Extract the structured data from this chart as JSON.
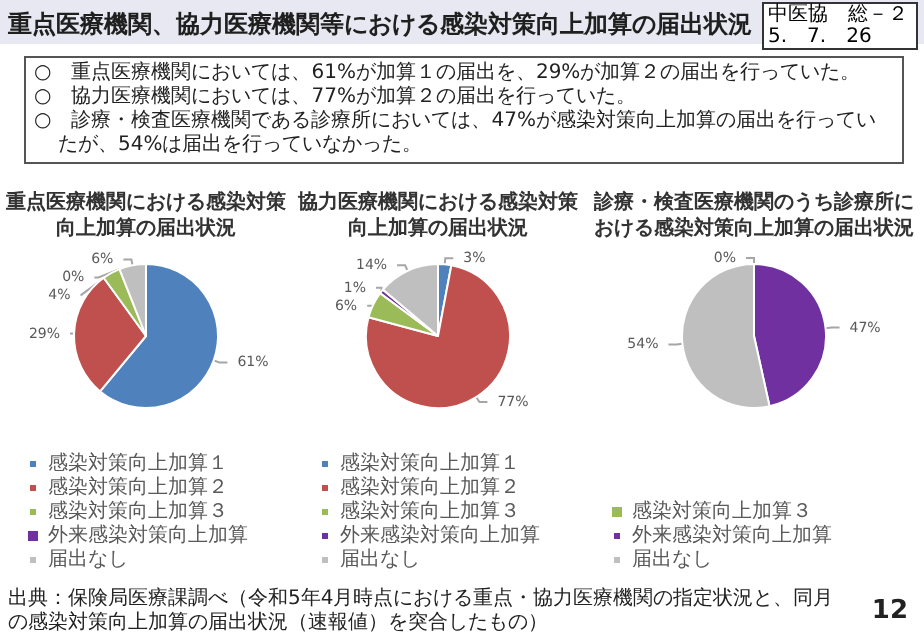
{
  "chart_data": [
    {
      "type": "other",
      "title": "重点医療機関、協力医療機関等における感染対策向上加算の届出状況",
      "annotations": [
        "中医協　総－２",
        "5.　7.　26",
        "○　重点医療機関においては、61%が加算１の届出を、29%が加算２の届出を行っていた。",
        "○　協力医療機関においては、77%が加算２の届出を行っていた。",
        "○　診療・検査医療機関である診療所においては、47%が感染対策向上加算の届出を行っていたが、54%は届出を行っていなかった。",
        "出典：保険局医療課調べ（令和5年4月時点における重点・協力医療機関の指定状況と、同月の感染対策向上加算の届出状況（速報値）を突合したもの）",
        "12"
      ]
    },
    {
      "type": "pie",
      "title": "重点医療機関における感染対策向上加算の届出状況",
      "categories": [
        "感染対策向上加算１",
        "感染対策向上加算２",
        "感染対策向上加算３",
        "外来感染対策向上加算",
        "届出なし"
      ],
      "values": [
        61,
        29,
        4,
        0,
        6
      ],
      "value_labels": [
        "61%",
        "29%",
        "4%",
        "0%",
        "6%"
      ],
      "colors": [
        "#4f81bd",
        "#c0504d",
        "#9bbb59",
        "#7030a0",
        "#bfbfbf"
      ],
      "legend": "bottom"
    },
    {
      "type": "pie",
      "title": "協力医療機関における感染対策向上加算の届出状況",
      "categories": [
        "感染対策向上加算１",
        "感染対策向上加算２",
        "感染対策向上加算３",
        "外来感染対策向上加算",
        "届出なし"
      ],
      "values": [
        3,
        77,
        6,
        1,
        14
      ],
      "value_labels": [
        "3%",
        "77%",
        "6%",
        "1%",
        "14%"
      ],
      "colors": [
        "#4f81bd",
        "#c0504d",
        "#9bbb59",
        "#7030a0",
        "#bfbfbf"
      ],
      "legend": "bottom"
    },
    {
      "type": "pie",
      "title": "診療・検査医療機関のうち診療所における感染対策向上加算の届出状況",
      "categories": [
        "感染対策向上加算３",
        "外来感染対策向上加算",
        "届出なし"
      ],
      "values": [
        0,
        47,
        54
      ],
      "value_labels": [
        "0%",
        "47%",
        "54%"
      ],
      "colors": [
        "#9bbb59",
        "#7030a0",
        "#bfbfbf"
      ],
      "legend": "bottom"
    }
  ]
}
